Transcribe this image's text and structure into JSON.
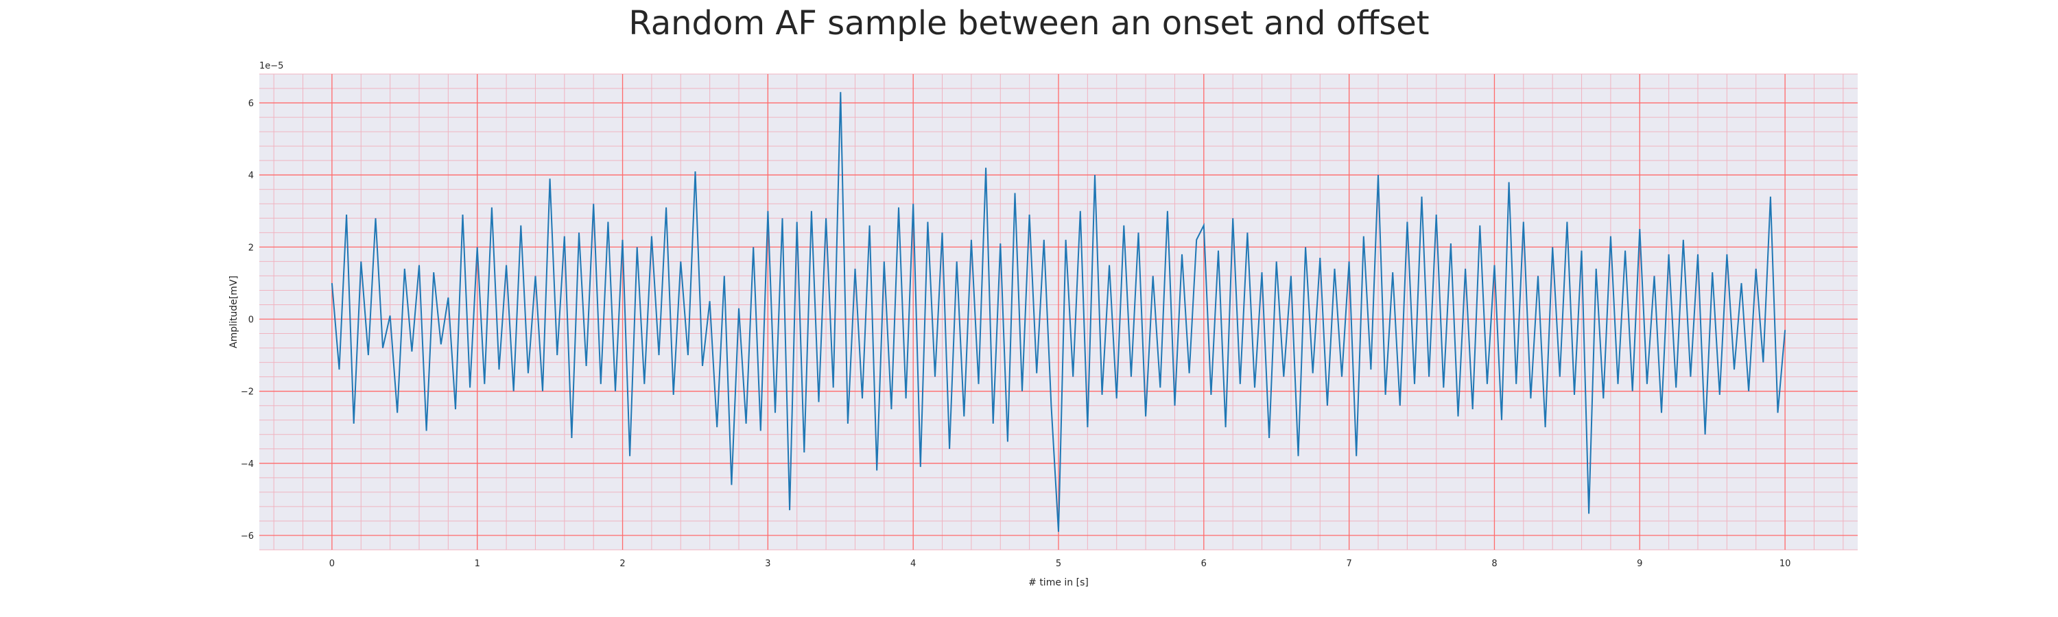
{
  "chart_data": {
    "type": "line",
    "title": "Random AF sample between an onset and offset",
    "xlabel": "# time in [s]",
    "ylabel": "Amplitude[mV]",
    "y_offset_label": "1e−5",
    "xlim": [
      -0.5,
      10.5
    ],
    "ylim": [
      -6.4,
      6.8
    ],
    "y_scale_factor": 1e-05,
    "xticks": [
      0,
      1,
      2,
      3,
      4,
      5,
      6,
      7,
      8,
      9,
      10
    ],
    "yticks": [
      -6,
      -4,
      -2,
      0,
      2,
      4,
      6
    ],
    "grid": true,
    "minor_grid": true,
    "colors": {
      "line": "#1f77b4",
      "plot_background": "#eaeaf2",
      "major_grid": "#ff6b6b",
      "minor_grid": "#f0b3c0"
    },
    "series": [
      {
        "x": [
          0.0,
          0.05,
          0.1,
          0.15,
          0.2,
          0.25,
          0.3,
          0.35,
          0.4,
          0.45,
          0.5,
          0.55,
          0.6,
          0.65,
          0.7,
          0.75,
          0.8,
          0.85,
          0.9,
          0.95,
          1.0,
          1.05,
          1.1,
          1.15,
          1.2,
          1.25,
          1.3,
          1.35,
          1.4,
          1.45,
          1.5,
          1.55,
          1.6,
          1.65,
          1.7,
          1.75,
          1.8,
          1.85,
          1.9,
          1.95,
          2.0,
          2.05,
          2.1,
          2.15,
          2.2,
          2.25,
          2.3,
          2.35,
          2.4,
          2.45,
          2.5,
          2.55,
          2.6,
          2.65,
          2.7,
          2.75,
          2.8,
          2.85,
          2.9,
          2.95,
          3.0,
          3.05,
          3.1,
          3.15,
          3.2,
          3.25,
          3.3,
          3.35,
          3.4,
          3.45,
          3.5,
          3.55,
          3.6,
          3.65,
          3.7,
          3.75,
          3.8,
          3.85,
          3.9,
          3.95,
          4.0,
          4.05,
          4.1,
          4.15,
          4.2,
          4.25,
          4.3,
          4.35,
          4.4,
          4.45,
          4.5,
          4.55,
          4.6,
          4.65,
          4.7,
          4.75,
          4.8,
          4.85,
          4.9,
          4.95,
          5.0,
          5.05,
          5.1,
          5.15,
          5.2,
          5.25,
          5.3,
          5.35,
          5.4,
          5.45,
          5.5,
          5.55,
          5.6,
          5.65,
          5.7,
          5.75,
          5.8,
          5.85,
          5.9,
          5.95,
          6.0,
          6.05,
          6.1,
          6.15,
          6.2,
          6.25,
          6.3,
          6.35,
          6.4,
          6.45,
          6.5,
          6.55,
          6.6,
          6.65,
          6.7,
          6.75,
          6.8,
          6.85,
          6.9,
          6.95,
          7.0,
          7.05,
          7.1,
          7.15,
          7.2,
          7.25,
          7.3,
          7.35,
          7.4,
          7.45,
          7.5,
          7.55,
          7.6,
          7.65,
          7.7,
          7.75,
          7.8,
          7.85,
          7.9,
          7.95,
          8.0,
          8.05,
          8.1,
          8.15,
          8.2,
          8.25,
          8.3,
          8.35,
          8.4,
          8.45,
          8.5,
          8.55,
          8.6,
          8.65,
          8.7,
          8.75,
          8.8,
          8.85,
          8.9,
          8.95,
          9.0,
          9.05,
          9.1,
          9.15,
          9.2,
          9.25,
          9.3,
          9.35,
          9.4,
          9.45,
          9.5,
          9.55,
          9.6,
          9.65,
          9.7,
          9.75,
          9.8,
          9.85,
          9.9,
          9.95,
          10.0
        ],
        "y": [
          1.0,
          -1.4,
          2.9,
          -2.9,
          1.6,
          -1.0,
          2.8,
          -0.8,
          0.1,
          -2.6,
          1.4,
          -0.9,
          1.5,
          -3.1,
          1.3,
          -0.7,
          0.6,
          -2.5,
          2.9,
          -1.9,
          2.0,
          -1.8,
          3.1,
          -1.4,
          1.5,
          -2.0,
          2.6,
          -1.5,
          1.2,
          -2.0,
          3.9,
          -1.0,
          2.3,
          -3.3,
          2.4,
          -1.3,
          3.2,
          -1.8,
          2.7,
          -2.0,
          2.2,
          -3.8,
          2.0,
          -1.8,
          2.3,
          -1.0,
          3.1,
          -2.1,
          1.6,
          -1.0,
          4.1,
          -1.3,
          0.5,
          -3.0,
          1.2,
          -4.6,
          0.3,
          -2.9,
          2.0,
          -3.1,
          3.0,
          -2.6,
          2.8,
          -5.3,
          2.7,
          -3.7,
          3.0,
          -2.3,
          2.8,
          -1.9,
          6.3,
          -2.9,
          1.4,
          -2.2,
          2.6,
          -4.2,
          1.6,
          -2.5,
          3.1,
          -2.2,
          3.2,
          -4.1,
          2.7,
          -1.6,
          2.4,
          -3.6,
          1.6,
          -2.7,
          2.2,
          -1.8,
          4.2,
          -2.9,
          2.1,
          -3.4,
          3.5,
          -2.0,
          2.9,
          -1.5,
          2.2,
          -2.4,
          -5.9,
          2.2,
          -1.6,
          3.0,
          -3.0,
          4.0,
          -2.1,
          1.5,
          -2.2,
          2.6,
          -1.6,
          2.4,
          -2.7,
          1.2,
          -1.9,
          3.0,
          -2.4,
          1.8,
          -1.5,
          2.2,
          2.6,
          -2.1,
          1.9,
          -3.0,
          2.8,
          -1.8,
          2.4,
          -1.9,
          1.3,
          -3.3,
          1.6,
          -1.6,
          1.2,
          -3.8,
          2.0,
          -1.5,
          1.7,
          -2.4,
          1.4,
          -1.6,
          1.6,
          -3.8,
          2.3,
          -1.4,
          4.0,
          -2.1,
          1.3,
          -2.4,
          2.7,
          -1.8,
          3.4,
          -1.6,
          2.9,
          -1.9,
          2.1,
          -2.7,
          1.4,
          -2.5,
          2.6,
          -1.8,
          1.5,
          -2.8,
          3.8,
          -1.8,
          2.7,
          -2.2,
          1.2,
          -3.0,
          2.0,
          -1.6,
          2.7,
          -2.1,
          1.9,
          -5.4,
          1.4,
          -2.2,
          2.3,
          -1.8,
          1.9,
          -2.0,
          2.5,
          -1.8,
          1.2,
          -2.6,
          1.8,
          -1.9,
          2.2,
          -1.6,
          1.8,
          -3.2,
          1.3,
          -2.1,
          1.8,
          -1.4,
          1.0,
          -2.0,
          1.4,
          -1.2,
          3.4,
          -2.6,
          -0.3
        ]
      }
    ]
  }
}
